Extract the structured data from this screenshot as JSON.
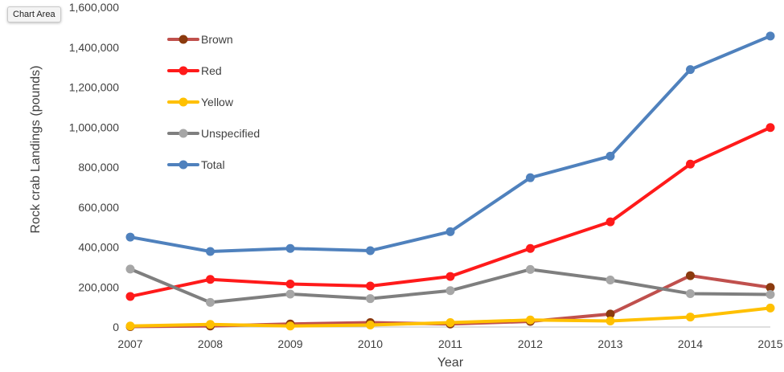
{
  "tooltip": {
    "label": "Chart Area"
  },
  "chart_data": {
    "type": "line",
    "x": [
      2007,
      2008,
      2009,
      2010,
      2011,
      2012,
      2013,
      2014,
      2015
    ],
    "xlabel": "Year",
    "ylabel": "Rock crab Landings (pounds)",
    "ylim": [
      0,
      1600000
    ],
    "yticks": [
      0,
      200000,
      400000,
      600000,
      800000,
      1000000,
      1200000,
      1400000,
      1600000
    ],
    "ytick_labels": [
      "0",
      "200,000",
      "400,000",
      "600,000",
      "800,000",
      "1,000,000",
      "1,200,000",
      "1,400,000",
      "1,600,000"
    ],
    "xtick_labels": [
      "2007",
      "2008",
      "2009",
      "2010",
      "2011",
      "2012",
      "2013",
      "2014",
      "2015"
    ],
    "grid": false,
    "legend_position": "top-left",
    "series": [
      {
        "name": "Brown",
        "color": "#c0504d",
        "marker_color": "#8b3a0e",
        "values": [
          2000,
          5000,
          15000,
          22000,
          15000,
          28000,
          65000,
          257000,
          198000
        ]
      },
      {
        "name": "Red",
        "color": "#ff1a1a",
        "marker_color": "#ff1a1a",
        "values": [
          153000,
          238000,
          215000,
          205000,
          253000,
          393000,
          526000,
          815000,
          998000
        ]
      },
      {
        "name": "Yellow",
        "color": "#ffc000",
        "marker_color": "#ffc000",
        "values": [
          5000,
          13000,
          5000,
          10000,
          22000,
          35000,
          30000,
          50000,
          95000
        ]
      },
      {
        "name": "Unspecified",
        "color": "#7f7f7f",
        "marker_color": "#a6a6a6",
        "values": [
          290000,
          123000,
          165000,
          142000,
          182000,
          288000,
          235000,
          167000,
          163000
        ]
      },
      {
        "name": "Total",
        "color": "#4f81bd",
        "marker_color": "#4f81bd",
        "values": [
          450000,
          378000,
          393000,
          382000,
          477000,
          747000,
          855000,
          1288000,
          1456000
        ]
      }
    ]
  }
}
